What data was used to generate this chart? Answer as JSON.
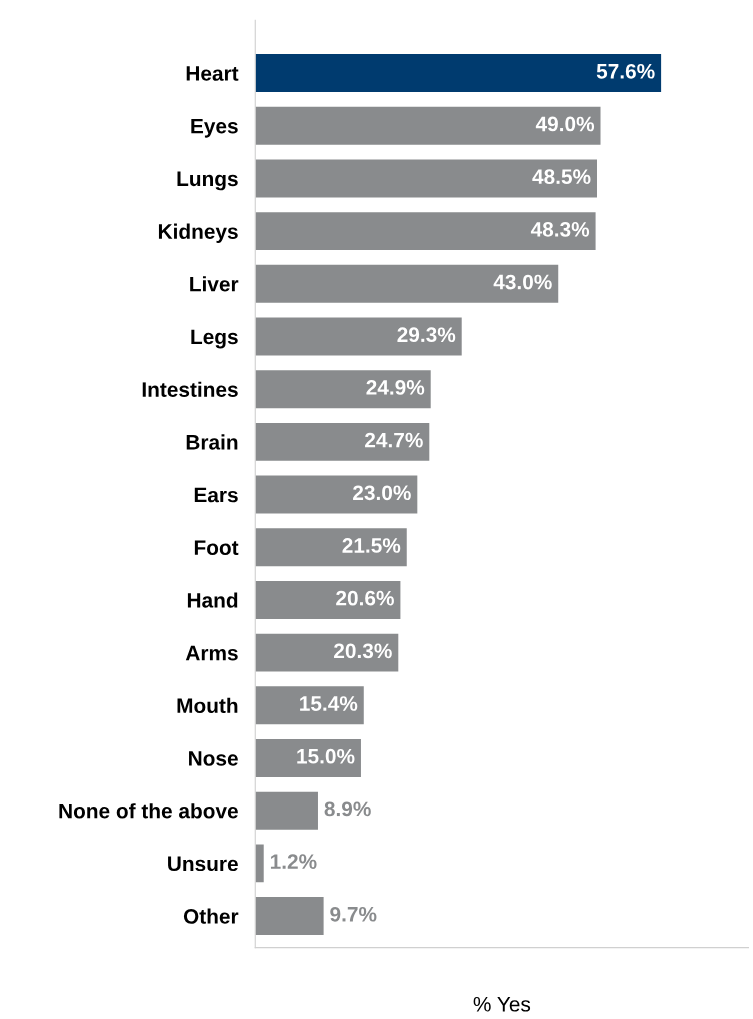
{
  "chart_data": {
    "type": "bar",
    "orientation": "horizontal",
    "xlabel": "% Yes",
    "categories": [
      "Heart",
      "Eyes",
      "Lungs",
      "Kidneys",
      "Liver",
      "Legs",
      "Intestines",
      "Brain",
      "Ears",
      "Foot",
      "Hand",
      "Arms",
      "Mouth",
      "Nose",
      "None of the above",
      "Unsure",
      "Other"
    ],
    "values": [
      57.6,
      49.0,
      48.5,
      48.3,
      43.0,
      29.3,
      24.9,
      24.7,
      23.0,
      21.5,
      20.6,
      20.3,
      15.4,
      15.0,
      8.9,
      1.2,
      9.7
    ],
    "value_labels": [
      "57.6%",
      "49.0%",
      "48.5%",
      "48.3%",
      "43.0%",
      "29.3%",
      "24.9%",
      "24.7%",
      "23.0%",
      "21.5%",
      "20.6%",
      "20.3%",
      "15.4%",
      "15.0%",
      "8.9%",
      "1.2%",
      "9.7%"
    ],
    "colors": [
      "#003b6f",
      "#898b8d",
      "#898b8d",
      "#898b8d",
      "#898b8d",
      "#898b8d",
      "#898b8d",
      "#898b8d",
      "#898b8d",
      "#898b8d",
      "#898b8d",
      "#898b8d",
      "#898b8d",
      "#898b8d",
      "#898b8d",
      "#898b8d",
      "#898b8d"
    ],
    "xlim": [
      0,
      70
    ],
    "tick_labels": "y",
    "grid": false,
    "legend": false
  }
}
